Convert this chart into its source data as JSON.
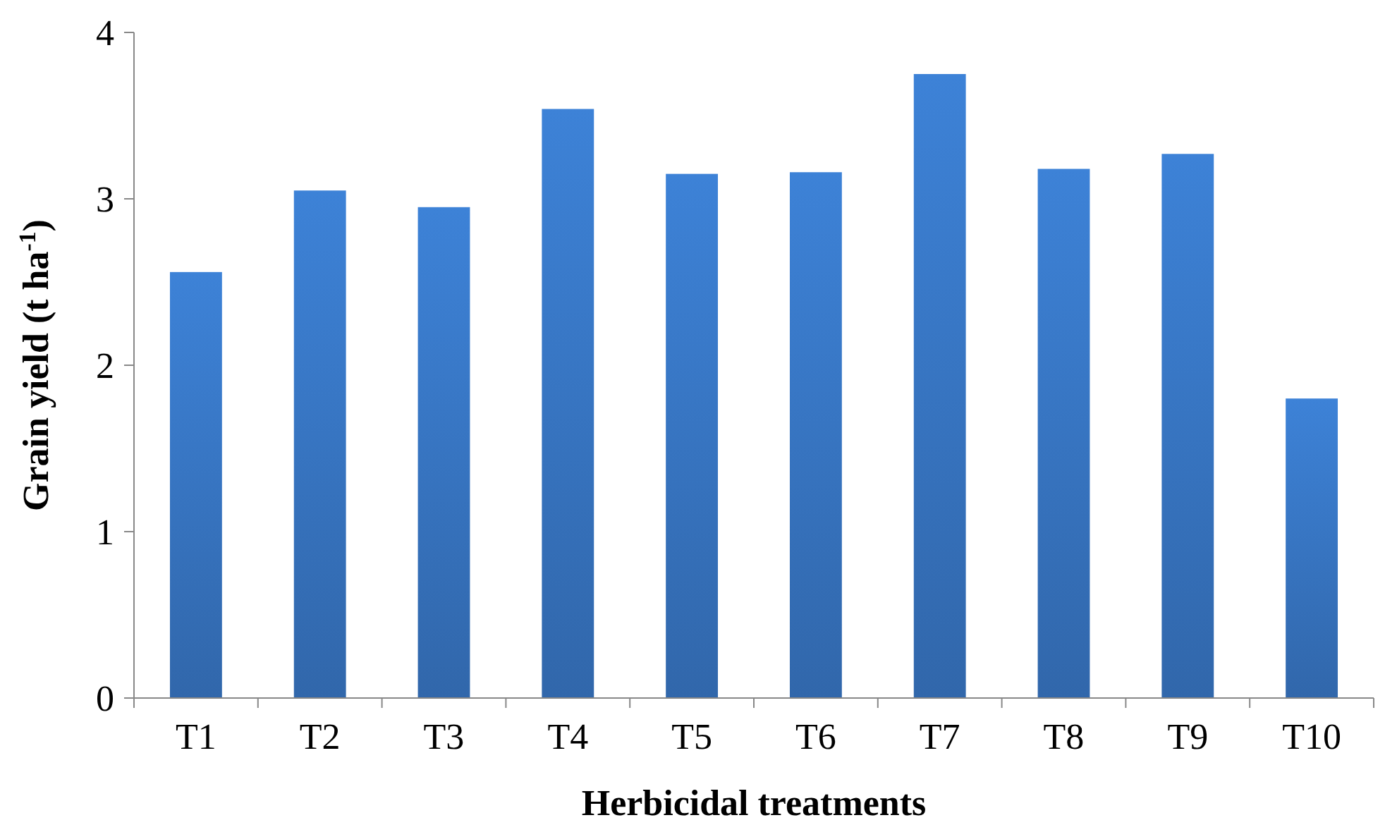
{
  "chart_data": {
    "type": "bar",
    "xlabel": "Herbicidal treatments",
    "ylabel": "Grain yield  (t ha$^{-1}$)",
    "categories": [
      "T1",
      "T2",
      "T3",
      "T4",
      "T5",
      "T6",
      "T7",
      "T8",
      "T9",
      "T10"
    ],
    "values": [
      2.56,
      3.05,
      2.95,
      3.54,
      3.15,
      3.16,
      3.75,
      3.18,
      3.27,
      1.8
    ],
    "color": "#3a7bcc",
    "ylim": [
      0,
      4
    ],
    "yticks": [
      0,
      1,
      2,
      3,
      4
    ],
    "grid": false
  }
}
